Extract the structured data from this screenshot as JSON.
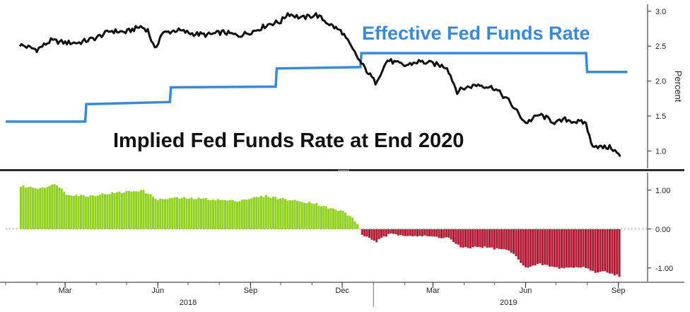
{
  "chart_data": [
    {
      "type": "line",
      "x_range": [
        "2018-01-01",
        "2019-09-30"
      ],
      "ylabel": "Percent",
      "ylim": [
        0.75,
        3.1
      ],
      "yticks": [
        "1.0",
        "1.5",
        "2.0",
        "2.5",
        "3.0"
      ],
      "grid": false,
      "series": [
        {
          "name": "Effective Fed Funds Rate",
          "color": "#3a89d4",
          "points": [
            [
              "2018-01-01",
              1.42
            ],
            [
              "2018-03-21",
              1.42
            ],
            [
              "2018-03-22",
              1.67
            ],
            [
              "2018-06-13",
              1.7
            ],
            [
              "2018-06-14",
              1.91
            ],
            [
              "2018-09-26",
              1.92
            ],
            [
              "2018-09-27",
              2.18
            ],
            [
              "2018-12-19",
              2.2
            ],
            [
              "2018-12-20",
              2.4
            ],
            [
              "2019-06-01",
              2.4
            ],
            [
              "2019-07-31",
              2.4
            ],
            [
              "2019-08-01",
              2.13
            ],
            [
              "2019-09-10",
              2.13
            ]
          ]
        },
        {
          "name": "Implied Fed Funds Rate at End 2020",
          "color": "#111111",
          "points": [
            [
              "2018-01-15",
              2.52
            ],
            [
              "2018-02-01",
              2.45
            ],
            [
              "2018-02-15",
              2.58
            ],
            [
              "2018-03-01",
              2.55
            ],
            [
              "2018-03-15",
              2.55
            ],
            [
              "2018-04-01",
              2.62
            ],
            [
              "2018-04-15",
              2.72
            ],
            [
              "2018-04-30",
              2.7
            ],
            [
              "2018-05-15",
              2.78
            ],
            [
              "2018-05-22",
              2.73
            ],
            [
              "2018-05-29",
              2.45
            ],
            [
              "2018-06-05",
              2.68
            ],
            [
              "2018-06-20",
              2.73
            ],
            [
              "2018-07-05",
              2.68
            ],
            [
              "2018-07-20",
              2.66
            ],
            [
              "2018-08-05",
              2.7
            ],
            [
              "2018-08-20",
              2.65
            ],
            [
              "2018-09-05",
              2.72
            ],
            [
              "2018-09-20",
              2.82
            ],
            [
              "2018-10-01",
              2.85
            ],
            [
              "2018-10-08",
              2.97
            ],
            [
              "2018-10-22",
              2.9
            ],
            [
              "2018-11-05",
              2.95
            ],
            [
              "2018-11-20",
              2.8
            ],
            [
              "2018-12-01",
              2.7
            ],
            [
              "2018-12-10",
              2.48
            ],
            [
              "2018-12-20",
              2.25
            ],
            [
              "2019-01-03",
              1.98
            ],
            [
              "2019-01-15",
              2.3
            ],
            [
              "2019-02-01",
              2.22
            ],
            [
              "2019-02-15",
              2.28
            ],
            [
              "2019-03-01",
              2.25
            ],
            [
              "2019-03-15",
              2.2
            ],
            [
              "2019-03-25",
              1.85
            ],
            [
              "2019-04-01",
              1.9
            ],
            [
              "2019-04-15",
              1.95
            ],
            [
              "2019-05-01",
              1.9
            ],
            [
              "2019-05-15",
              1.72
            ],
            [
              "2019-06-01",
              1.4
            ],
            [
              "2019-06-15",
              1.52
            ],
            [
              "2019-07-01",
              1.4
            ],
            [
              "2019-07-10",
              1.45
            ],
            [
              "2019-07-20",
              1.42
            ],
            [
              "2019-07-31",
              1.4
            ],
            [
              "2019-08-05",
              1.1
            ],
            [
              "2019-08-15",
              1.05
            ],
            [
              "2019-08-25",
              1.05
            ],
            [
              "2019-09-03",
              0.92
            ]
          ]
        }
      ]
    },
    {
      "type": "bar",
      "x_range": [
        "2018-01-01",
        "2019-09-30"
      ],
      "ylim": [
        -1.35,
        1.45
      ],
      "yticks": [
        "1.00",
        "0.00",
        "-1.00"
      ],
      "grid": false,
      "series": [
        {
          "positive_color": "#8fd11e",
          "negative_color": "#b21a34",
          "points": [
            [
              "2018-01-15",
              1.1
            ],
            [
              "2018-02-01",
              1.05
            ],
            [
              "2018-02-20",
              1.15
            ],
            [
              "2018-03-01",
              0.9
            ],
            [
              "2018-03-21",
              0.85
            ],
            [
              "2018-04-15",
              0.92
            ],
            [
              "2018-05-15",
              1.0
            ],
            [
              "2018-06-01",
              0.75
            ],
            [
              "2018-06-15",
              0.8
            ],
            [
              "2018-07-15",
              0.78
            ],
            [
              "2018-08-15",
              0.72
            ],
            [
              "2018-09-15",
              0.85
            ],
            [
              "2018-10-01",
              0.78
            ],
            [
              "2018-10-15",
              0.72
            ],
            [
              "2018-11-01",
              0.68
            ],
            [
              "2018-11-15",
              0.55
            ],
            [
              "2018-12-01",
              0.45
            ],
            [
              "2018-12-12",
              0.25
            ],
            [
              "2018-12-20",
              -0.15
            ],
            [
              "2019-01-03",
              -0.32
            ],
            [
              "2019-01-15",
              -0.14
            ],
            [
              "2019-02-01",
              -0.15
            ],
            [
              "2019-02-15",
              -0.18
            ],
            [
              "2019-03-15",
              -0.22
            ],
            [
              "2019-03-29",
              -0.5
            ],
            [
              "2019-04-15",
              -0.45
            ],
            [
              "2019-05-15",
              -0.55
            ],
            [
              "2019-06-01",
              -1.0
            ],
            [
              "2019-06-15",
              -0.9
            ],
            [
              "2019-07-01",
              -1.0
            ],
            [
              "2019-07-31",
              -0.98
            ],
            [
              "2019-08-05",
              -1.1
            ],
            [
              "2019-08-20",
              -1.1
            ],
            [
              "2019-09-03",
              -1.22
            ]
          ]
        }
      ]
    }
  ],
  "labels": {
    "implied_series_title": "Implied Fed Funds Rate at End 2020",
    "effective_series_title": "Effective Fed Funds Rate",
    "percent_axis_label": "Percent"
  },
  "x_axis": {
    "months": [
      {
        "date": "2018-03-01",
        "label": "Mar"
      },
      {
        "date": "2018-06-01",
        "label": "Jun"
      },
      {
        "date": "2018-09-01",
        "label": "Sep"
      },
      {
        "date": "2018-12-01",
        "label": "Dec"
      },
      {
        "date": "2019-03-01",
        "label": "Mar"
      },
      {
        "date": "2019-06-01",
        "label": "Jun"
      },
      {
        "date": "2019-09-01",
        "label": "Sep"
      }
    ],
    "years": [
      {
        "date": "2018-07-01",
        "label": "2018"
      },
      {
        "date": "2019-05-15",
        "label": "2019"
      }
    ],
    "year_boundary": "2019-01-01"
  }
}
